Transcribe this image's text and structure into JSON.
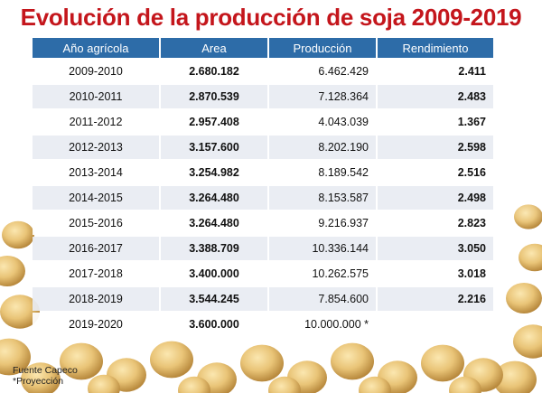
{
  "title": "Evolución de la producción de soja 2009-2019",
  "chart_data": {
    "type": "table",
    "title": "Evolución de la producción de soja 2009-2019",
    "columns": [
      "Año agrícola",
      "Area",
      "Producción",
      "Rendimiento"
    ],
    "rows": [
      [
        "2009-2010",
        "2.680.182",
        "6.462.429",
        "2.411"
      ],
      [
        "2010-2011",
        "2.870.539",
        "7.128.364",
        "2.483"
      ],
      [
        "2011-2012",
        "2.957.408",
        "4.043.039",
        "1.367"
      ],
      [
        "2012-2013",
        "3.157.600",
        "8.202.190",
        "2.598"
      ],
      [
        "2013-2014",
        "3.254.982",
        "8.189.542",
        "2.516"
      ],
      [
        "2014-2015",
        "3.264.480",
        "8.153.587",
        "2.498"
      ],
      [
        "2015-2016",
        "3.264.480",
        "9.216.937",
        "2.823"
      ],
      [
        "2016-2017",
        "3.388.709",
        "10.336.144",
        "3.050"
      ],
      [
        "2017-2018",
        "3.400.000",
        "10.262.575",
        "3.018"
      ],
      [
        "2018-2019",
        "3.544.245",
        "7.854.600",
        "2.216"
      ],
      [
        "2019-2020",
        "3.600.000",
        "10.000.000 *",
        ""
      ]
    ]
  },
  "footer": {
    "source": "Fuente Capeco",
    "note": "*Proyección"
  },
  "colors": {
    "title": "#c4161c",
    "header_bg": "#2d6ca8",
    "header_text": "#ffffff"
  }
}
